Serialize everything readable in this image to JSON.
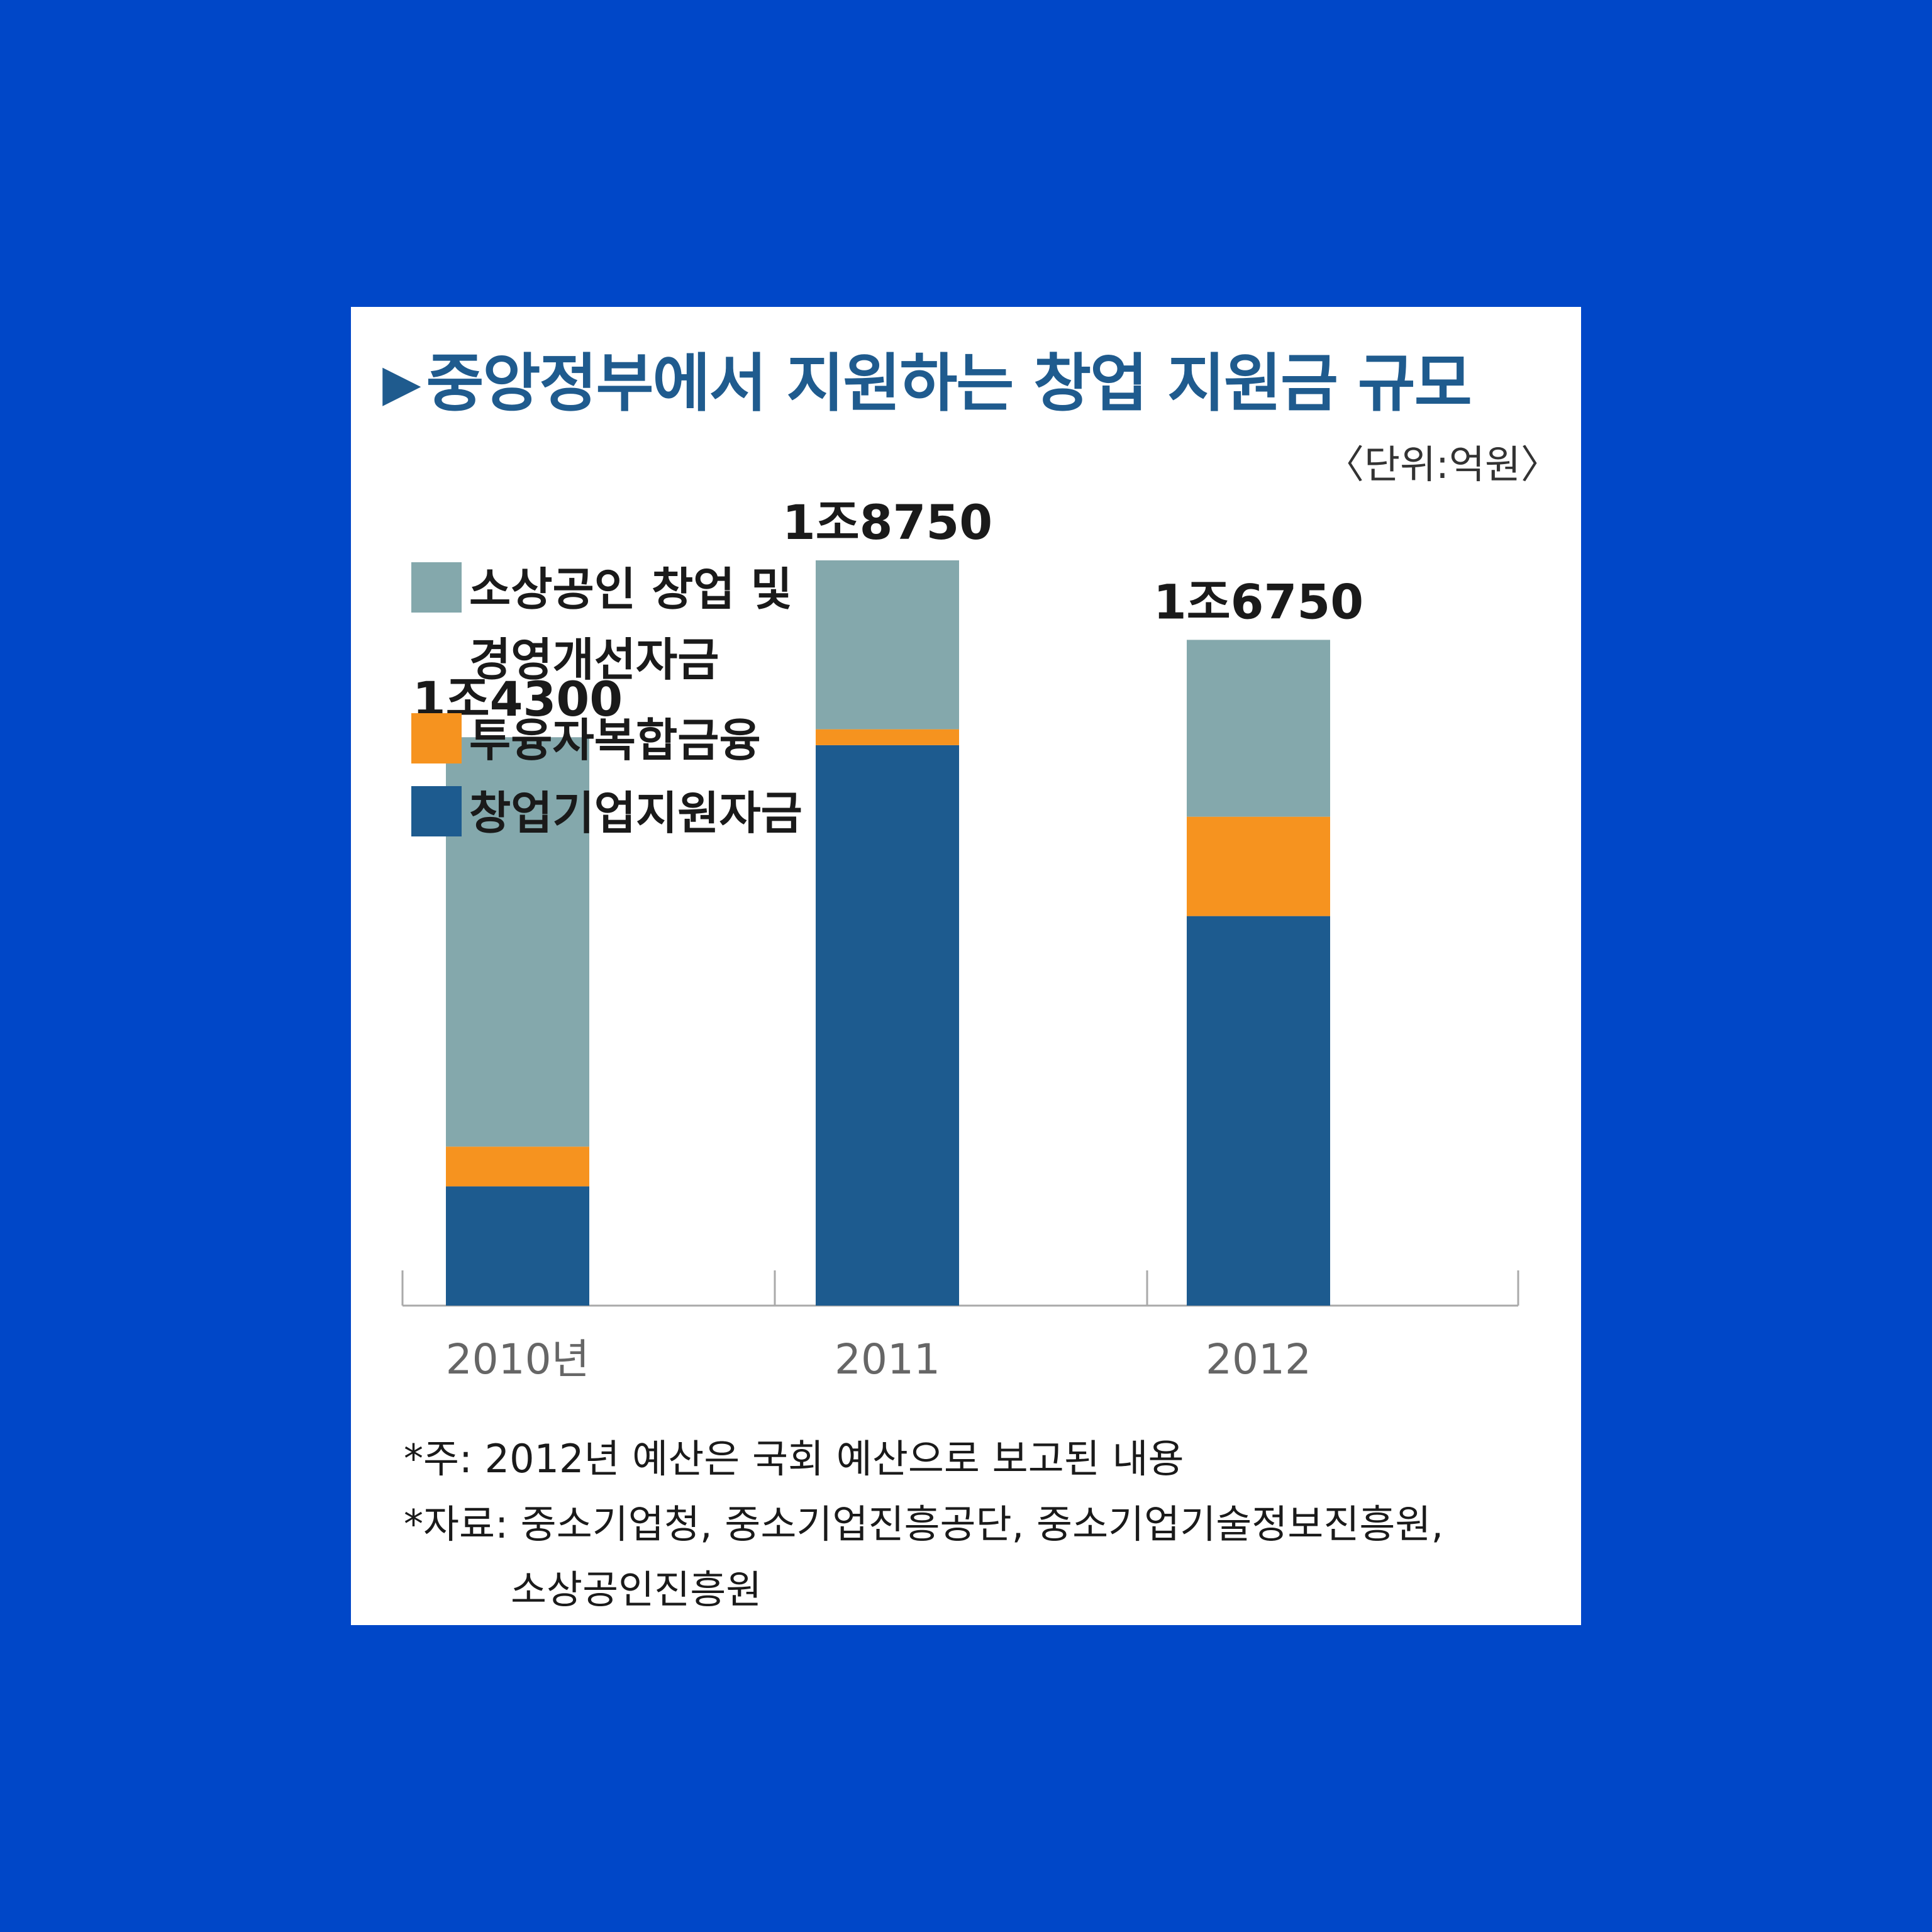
{
  "title": "중앙정부에서 지원하는 창업 지원금 규모",
  "unit": "〈단위:억원〉",
  "colors": {
    "background": "#0047c8",
    "title": "#1f5b8e",
    "small_business": "#84a8ac",
    "fusion_finance": "#f6931f",
    "startup": "#1d5b8f"
  },
  "chart_data": {
    "type": "bar",
    "stacked": true,
    "categories": [
      "2010년",
      "2011",
      "2012"
    ],
    "totals": [
      14300,
      18750,
      16750
    ],
    "total_labels": [
      "1조4300",
      "1조8750",
      "1조6750"
    ],
    "series": [
      {
        "name": "창업기업지원자금",
        "color": "#1d5b8f",
        "values": [
          3000,
          14100,
          9800
        ]
      },
      {
        "name": "투융자복합금융",
        "color": "#f6931f",
        "values": [
          1000,
          400,
          2500
        ]
      },
      {
        "name": "소상공인 창업 및 경영개선자금",
        "color": "#84a8ac",
        "values": [
          10300,
          4250,
          4450
        ]
      }
    ],
    "legend": {
      "position": "top-left",
      "order": [
        "소상공인 창업 및 경영개선자금",
        "투융자복합금융",
        "창업기업지원자금"
      ],
      "lines": [
        [
          "소상공인 창업 및",
          "경영개선자금"
        ],
        [
          "투융자복합금융"
        ],
        [
          "창업기업지원자금"
        ]
      ]
    },
    "ylim": [
      0,
      22000
    ],
    "grid": false
  },
  "notes": {
    "line1": "*주: 2012년 예산은 국회 예산으로 보고된 내용",
    "line2": "*자료: 중소기업청, 중소기업진흥공단, 중소기업기술정보진흥원,",
    "line3": "소상공인진흥원"
  }
}
